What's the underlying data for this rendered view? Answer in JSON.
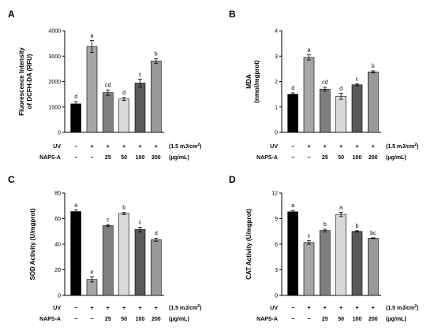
{
  "conditions": {
    "uv_label": "UV",
    "uv_values": [
      "−",
      "+",
      "+",
      "+",
      "+",
      "+"
    ],
    "uv_unit_prefix": "(1.5 mJ/cm",
    "uv_unit_sup": "2",
    "uv_unit_suffix": ")",
    "naps_label": "NAPS-A",
    "naps_values": [
      "−",
      "−",
      "25",
      "50",
      "100",
      "200"
    ],
    "naps_unit": "(μg/mL)"
  },
  "bar_colors": [
    "#000000",
    "#a6a6a6",
    "#7f7f7f",
    "#d9d9d9",
    "#595959",
    "#999999"
  ],
  "chart_data": [
    {
      "type": "bar",
      "panel": "A",
      "ylabel_line1": "Fluorescence Intensity",
      "ylabel_line2": "of DCFH-DA (RFU)",
      "ylim": [
        0,
        4000
      ],
      "yticks": [
        "0",
        "1000",
        "2000",
        "3000",
        "4000"
      ],
      "values": [
        1120,
        3380,
        1560,
        1310,
        1940,
        2810
      ],
      "errors": [
        90,
        230,
        110,
        60,
        150,
        90
      ],
      "letters": [
        "d",
        "a",
        "cd",
        "d",
        "c",
        "b"
      ],
      "uv_values": [
        "−",
        "+",
        "+",
        "+",
        "+",
        "+"
      ]
    },
    {
      "type": "bar",
      "panel": "B",
      "ylabel_line1": "MDA",
      "ylabel_line2": "(nmol/mgprot)",
      "ylim": [
        0,
        4
      ],
      "yticks": [
        "0",
        "1",
        "2",
        "3",
        "4"
      ],
      "values": [
        1.5,
        2.95,
        1.7,
        1.42,
        1.87,
        2.38
      ],
      "errors": [
        0.05,
        0.1,
        0.08,
        0.12,
        0.04,
        0.04
      ],
      "letters": [
        "d",
        "a",
        "cd",
        "d",
        "c",
        "b"
      ],
      "uv_values": [
        "−",
        "+",
        "+",
        "+",
        "+",
        "+"
      ]
    },
    {
      "type": "bar",
      "panel": "C",
      "ylabel_line1": "SOD Activity (U/mgprot)",
      "ylabel_line2": "",
      "ylim": [
        0,
        80
      ],
      "yticks": [
        "0",
        "20",
        "40",
        "60",
        "80"
      ],
      "values": [
        65.5,
        12.5,
        54.5,
        64.0,
        51.5,
        43.5
      ],
      "errors": [
        1.2,
        2.0,
        0.8,
        0.8,
        1.8,
        1.2
      ],
      "letters": [
        "a",
        "e",
        "c",
        "b",
        "c",
        "d"
      ],
      "uv_values": [
        "−",
        "+",
        "+",
        "+",
        "+",
        "+"
      ]
    },
    {
      "type": "bar",
      "panel": "D",
      "ylabel_line1": "CAT Activity (U/mgprot)",
      "ylabel_line2": "",
      "ylim": [
        0,
        12
      ],
      "yticks": [
        "0",
        "3",
        "6",
        "9",
        "12"
      ],
      "values": [
        9.8,
        6.2,
        7.6,
        9.5,
        7.5,
        6.7
      ],
      "errors": [
        0.15,
        0.2,
        0.15,
        0.25,
        0.08,
        0.05
      ],
      "letters": [
        "a",
        "c",
        "b",
        "a",
        "b",
        "bc"
      ],
      "uv_values": [
        "−",
        "+",
        "+",
        "+",
        "+",
        "+"
      ]
    }
  ]
}
